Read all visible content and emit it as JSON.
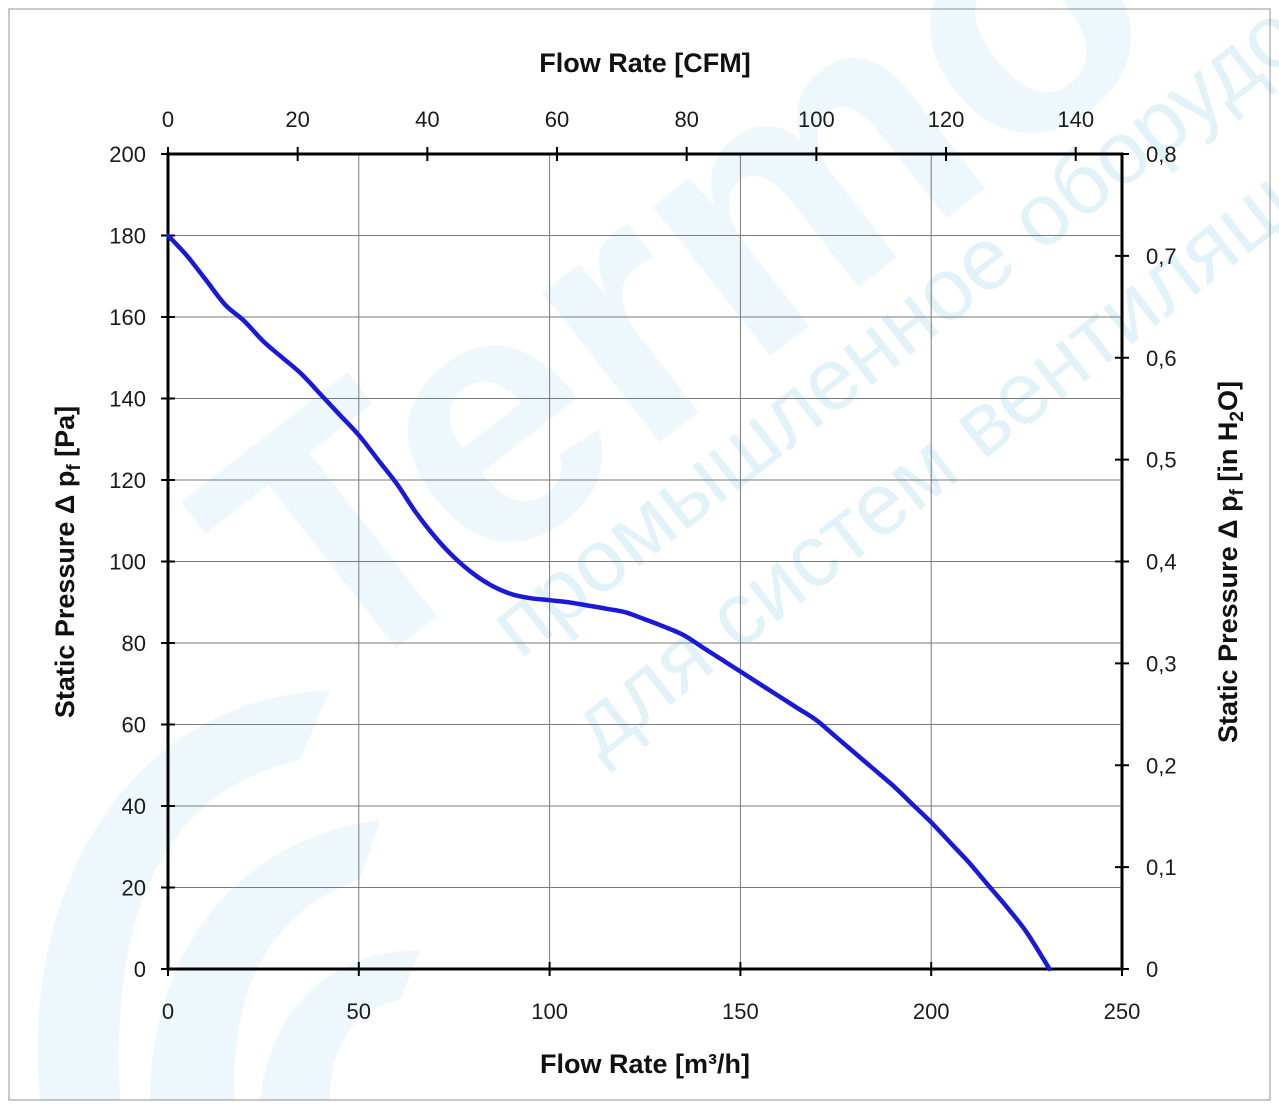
{
  "chart_data": {
    "type": "line",
    "title": "",
    "xlabel": "Flow Rate [m³/h]",
    "x2label": "Flow Rate [CFM]",
    "ylabel_main": "Static Pressure Δ p",
    "ylabel_sub": "f",
    "ylabel_unit": " [Pa]",
    "y2label_main": "Static Pressure Δ p",
    "y2label_sub": "f",
    "y2label_unit_a": " [in H",
    "y2label_unit_sub": "2",
    "y2label_unit_b": "O]",
    "xlim": [
      0,
      250
    ],
    "ylim": [
      0,
      200
    ],
    "x2lim": [
      0,
      147.14
    ],
    "y2lim": [
      0,
      0.8
    ],
    "x_ticks": [
      "0",
      "50",
      "100",
      "150",
      "200",
      "250"
    ],
    "y_ticks": [
      "0",
      "20",
      "40",
      "60",
      "80",
      "100",
      "120",
      "140",
      "160",
      "180",
      "200"
    ],
    "x2_ticks": [
      "0",
      "20",
      "40",
      "60",
      "80",
      "100",
      "120",
      "140"
    ],
    "y2_ticks": [
      "0",
      "0,1",
      "0,2",
      "0,3",
      "0,4",
      "0,5",
      "0,6",
      "0,7",
      "0,8"
    ],
    "grid": true,
    "legend": "none",
    "series": [
      {
        "color": "#1a1ad6",
        "x": [
          0,
          5,
          10,
          15,
          20,
          25,
          30,
          35,
          40,
          45,
          50,
          55,
          60,
          65,
          70,
          75,
          80,
          85,
          90,
          95,
          100,
          105,
          110,
          115,
          120,
          125,
          130,
          135,
          140,
          145,
          150,
          155,
          160,
          165,
          170,
          175,
          180,
          185,
          190,
          195,
          200,
          205,
          210,
          215,
          220,
          225,
          231
        ],
        "y": [
          180,
          175,
          169,
          163,
          159,
          154,
          150,
          146,
          141,
          136,
          131,
          125,
          119,
          112,
          106,
          101,
          97,
          94,
          92,
          91,
          90.5,
          90,
          89.2,
          88.4,
          87.5,
          85.8,
          84,
          82,
          79,
          76,
          73,
          70,
          67,
          64,
          61,
          57,
          53,
          49,
          45,
          40.5,
          36,
          31,
          26,
          20.5,
          15,
          9,
          0
        ]
      }
    ]
  },
  "watermark": {
    "brand": "Termo",
    "line1": "промышленное оборудование",
    "line2": "для систем вентиляции",
    "color": "#0e92c8"
  }
}
